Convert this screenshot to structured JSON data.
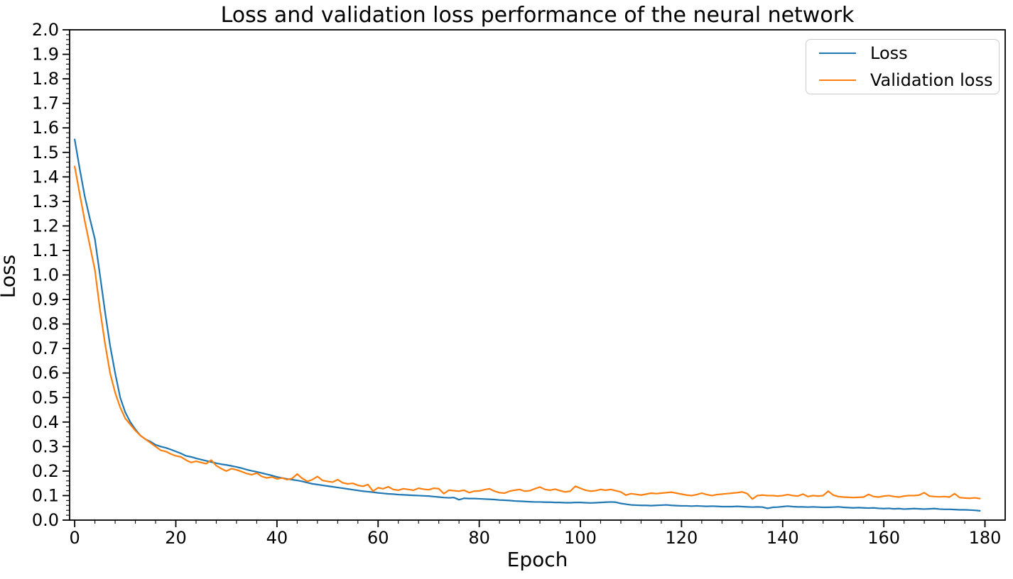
{
  "title": "Loss and validation loss performance of the neural network",
  "axes": {
    "xlabel": "Epoch",
    "ylabel": "Loss"
  },
  "legend": {
    "position": "upper right",
    "items": [
      {
        "label": "Loss",
        "color": "#1f77b4"
      },
      {
        "label": "Validation loss",
        "color": "#ff7f0e"
      }
    ]
  },
  "colors": {
    "loss_line": "#1f77b4",
    "validation_loss_line": "#ff7f0e",
    "spine": "#000000",
    "background": "#ffffff",
    "legend_border": "#cccccc"
  },
  "chart_data": {
    "type": "line",
    "title": "Loss and validation loss performance of the neural network",
    "xlabel": "Epoch",
    "ylabel": "Loss",
    "xlim": [
      -1,
      184
    ],
    "ylim": [
      0,
      2.0
    ],
    "x_ticks": [
      0,
      20,
      40,
      60,
      80,
      100,
      120,
      140,
      160,
      180
    ],
    "x_minor_step": 4,
    "y_tick_step": 0.1,
    "y_minor_step": 0.02,
    "y_tick_label_format": "one_decimal",
    "grid": false,
    "legend_position": "upper right",
    "x_start": 0,
    "x_step": 1,
    "n_points": 180,
    "series": [
      {
        "name": "Loss",
        "color": "#1f77b4",
        "values": [
          1.553,
          1.432,
          1.32,
          1.23,
          1.146,
          1.0,
          0.85,
          0.712,
          0.6,
          0.5,
          0.44,
          0.4,
          0.37,
          0.345,
          0.33,
          0.32,
          0.307,
          0.3,
          0.295,
          0.288,
          0.28,
          0.272,
          0.262,
          0.258,
          0.252,
          0.247,
          0.242,
          0.237,
          0.232,
          0.228,
          0.225,
          0.221,
          0.217,
          0.212,
          0.206,
          0.201,
          0.197,
          0.192,
          0.187,
          0.182,
          0.176,
          0.172,
          0.168,
          0.165,
          0.162,
          0.158,
          0.153,
          0.148,
          0.145,
          0.142,
          0.139,
          0.136,
          0.133,
          0.13,
          0.127,
          0.124,
          0.121,
          0.118,
          0.116,
          0.114,
          0.111,
          0.109,
          0.107,
          0.106,
          0.104,
          0.103,
          0.102,
          0.101,
          0.1,
          0.099,
          0.098,
          0.096,
          0.094,
          0.092,
          0.091,
          0.092,
          0.083,
          0.089,
          0.088,
          0.088,
          0.087,
          0.086,
          0.085,
          0.084,
          0.082,
          0.081,
          0.08,
          0.078,
          0.077,
          0.076,
          0.075,
          0.074,
          0.074,
          0.073,
          0.073,
          0.072,
          0.072,
          0.071,
          0.071,
          0.072,
          0.072,
          0.071,
          0.07,
          0.071,
          0.072,
          0.073,
          0.074,
          0.073,
          0.068,
          0.065,
          0.062,
          0.061,
          0.06,
          0.06,
          0.059,
          0.06,
          0.061,
          0.062,
          0.06,
          0.059,
          0.058,
          0.058,
          0.057,
          0.058,
          0.057,
          0.056,
          0.057,
          0.056,
          0.055,
          0.055,
          0.055,
          0.056,
          0.055,
          0.054,
          0.053,
          0.054,
          0.053,
          0.048,
          0.052,
          0.053,
          0.055,
          0.057,
          0.055,
          0.054,
          0.054,
          0.053,
          0.054,
          0.053,
          0.052,
          0.052,
          0.053,
          0.054,
          0.052,
          0.051,
          0.05,
          0.051,
          0.05,
          0.049,
          0.05,
          0.048,
          0.047,
          0.048,
          0.046,
          0.047,
          0.045,
          0.046,
          0.047,
          0.046,
          0.045,
          0.046,
          0.047,
          0.045,
          0.044,
          0.044,
          0.043,
          0.042,
          0.042,
          0.041,
          0.04,
          0.038
        ]
      },
      {
        "name": "Validation loss",
        "color": "#ff7f0e",
        "values": [
          1.443,
          1.33,
          1.22,
          1.12,
          1.02,
          0.86,
          0.72,
          0.6,
          0.52,
          0.46,
          0.415,
          0.39,
          0.365,
          0.345,
          0.33,
          0.315,
          0.3,
          0.285,
          0.28,
          0.27,
          0.262,
          0.258,
          0.245,
          0.235,
          0.24,
          0.235,
          0.23,
          0.245,
          0.222,
          0.21,
          0.2,
          0.21,
          0.205,
          0.198,
          0.19,
          0.185,
          0.192,
          0.178,
          0.172,
          0.176,
          0.168,
          0.172,
          0.165,
          0.17,
          0.188,
          0.17,
          0.158,
          0.165,
          0.178,
          0.162,
          0.158,
          0.155,
          0.165,
          0.152,
          0.148,
          0.15,
          0.142,
          0.138,
          0.145,
          0.118,
          0.132,
          0.128,
          0.136,
          0.125,
          0.122,
          0.128,
          0.125,
          0.122,
          0.13,
          0.126,
          0.124,
          0.13,
          0.128,
          0.108,
          0.122,
          0.12,
          0.118,
          0.122,
          0.112,
          0.118,
          0.119,
          0.124,
          0.128,
          0.118,
          0.112,
          0.11,
          0.118,
          0.122,
          0.125,
          0.118,
          0.12,
          0.128,
          0.135,
          0.125,
          0.122,
          0.126,
          0.12,
          0.115,
          0.118,
          0.138,
          0.13,
          0.122,
          0.118,
          0.12,
          0.125,
          0.122,
          0.125,
          0.12,
          0.115,
          0.102,
          0.108,
          0.105,
          0.102,
          0.106,
          0.11,
          0.108,
          0.11,
          0.112,
          0.114,
          0.11,
          0.106,
          0.102,
          0.1,
          0.104,
          0.11,
          0.104,
          0.1,
          0.104,
          0.106,
          0.108,
          0.11,
          0.112,
          0.115,
          0.108,
          0.086,
          0.1,
          0.102,
          0.1,
          0.1,
          0.098,
          0.1,
          0.104,
          0.1,
          0.098,
          0.106,
          0.096,
          0.1,
          0.098,
          0.1,
          0.118,
          0.102,
          0.096,
          0.094,
          0.093,
          0.092,
          0.093,
          0.094,
          0.105,
          0.096,
          0.094,
          0.098,
          0.1,
          0.096,
          0.094,
          0.098,
          0.1,
          0.1,
          0.102,
          0.112,
          0.098,
          0.096,
          0.095,
          0.096,
          0.094,
          0.108,
          0.092,
          0.09,
          0.089,
          0.091,
          0.088
        ]
      }
    ]
  }
}
